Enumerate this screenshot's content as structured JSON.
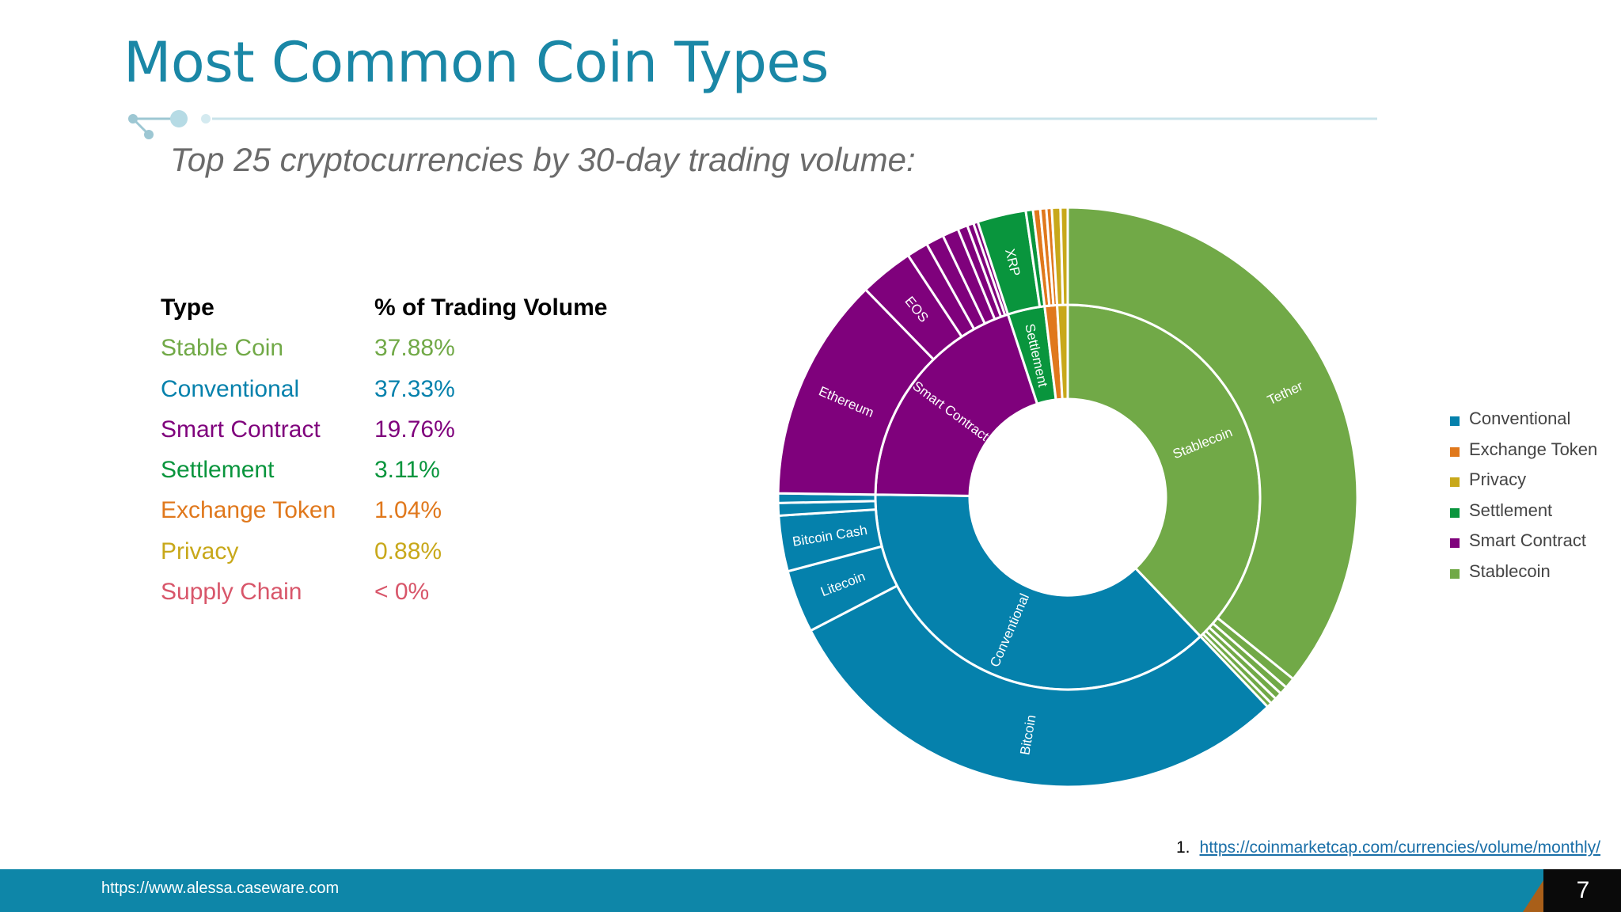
{
  "title": "Most Common Coin Types",
  "subtitle": "Top 25 cryptocurrencies by 30-day trading volume:",
  "table": {
    "header": {
      "type": "Type",
      "pct": "% of Trading Volume"
    },
    "rows": [
      {
        "type": "Stable Coin",
        "pct": "37.88%",
        "color": "#71a947"
      },
      {
        "type": "Conventional",
        "pct": "37.33%",
        "color": "#0581ac"
      },
      {
        "type": "Smart Contract",
        "pct": "19.76%",
        "color": "#7f017c"
      },
      {
        "type": "Settlement",
        "pct": "3.11%",
        "color": "#09953d"
      },
      {
        "type": "Exchange Token",
        "pct": "1.04%",
        "color": "#e0781c"
      },
      {
        "type": "Privacy",
        "pct": "0.88%",
        "color": "#c8a81a"
      },
      {
        "type": "Supply Chain",
        "pct": "< 0%",
        "color": "#d8566a"
      }
    ]
  },
  "legend": {
    "items": [
      {
        "label": "Conventional",
        "color": "#0581ac"
      },
      {
        "label": "Exchange Token",
        "color": "#e0781c"
      },
      {
        "label": "Privacy",
        "color": "#c8a81a"
      },
      {
        "label": "Settlement",
        "color": "#09953d"
      },
      {
        "label": "Smart Contract",
        "color": "#7f017c"
      },
      {
        "label": "Stablecoin",
        "color": "#71a947"
      }
    ]
  },
  "chart_data": {
    "type": "sunburst",
    "title": "",
    "inner_ring": [
      {
        "name": "Stablecoin",
        "value": 37.88,
        "color": "#71a947"
      },
      {
        "name": "Conventional",
        "value": 37.33,
        "color": "#0581ac"
      },
      {
        "name": "Smart Contract",
        "value": 19.76,
        "color": "#7f017c"
      },
      {
        "name": "Settlement",
        "value": 3.11,
        "color": "#09953d"
      },
      {
        "name": "",
        "value": 1.04,
        "color": "#e0781c"
      },
      {
        "name": "",
        "value": 0.88,
        "color": "#c8a81a"
      }
    ],
    "outer_ring": [
      {
        "name": "Tether",
        "value": 35.8,
        "color": "#71a947"
      },
      {
        "name": "",
        "value": 0.6,
        "color": "#71a947"
      },
      {
        "name": "",
        "value": 0.45,
        "color": "#71a947"
      },
      {
        "name": "",
        "value": 0.4,
        "color": "#71a947"
      },
      {
        "name": "",
        "value": 0.35,
        "color": "#71a947"
      },
      {
        "name": "",
        "value": 0.28,
        "color": "#71a947"
      },
      {
        "name": "Bitcoin",
        "value": 29.5,
        "color": "#0581ac"
      },
      {
        "name": "Litecoin",
        "value": 3.5,
        "color": "#0581ac"
      },
      {
        "name": "Bitcoin Cash",
        "value": 3.1,
        "color": "#0581ac"
      },
      {
        "name": "",
        "value": 0.7,
        "color": "#0581ac"
      },
      {
        "name": "",
        "value": 0.53,
        "color": "#0581ac"
      },
      {
        "name": "Ethereum",
        "value": 12.5,
        "color": "#7f017c"
      },
      {
        "name": "EOS",
        "value": 3.0,
        "color": "#7f017c"
      },
      {
        "name": "",
        "value": 1.2,
        "color": "#7f017c"
      },
      {
        "name": "",
        "value": 1.0,
        "color": "#7f017c"
      },
      {
        "name": "",
        "value": 0.9,
        "color": "#7f017c"
      },
      {
        "name": "",
        "value": 0.55,
        "color": "#7f017c"
      },
      {
        "name": "",
        "value": 0.36,
        "color": "#7f017c"
      },
      {
        "name": "",
        "value": 0.25,
        "color": "#7f017c"
      },
      {
        "name": "XRP",
        "value": 2.71,
        "color": "#09953d"
      },
      {
        "name": "",
        "value": 0.4,
        "color": "#09953d"
      },
      {
        "name": "",
        "value": 0.4,
        "color": "#e0781c"
      },
      {
        "name": "",
        "value": 0.34,
        "color": "#e0781c"
      },
      {
        "name": "",
        "value": 0.3,
        "color": "#e0781c"
      },
      {
        "name": "",
        "value": 0.48,
        "color": "#c8a81a"
      },
      {
        "name": "",
        "value": 0.4,
        "color": "#c8a81a"
      }
    ]
  },
  "source": {
    "number": "1.",
    "url": "https://coinmarketcap.com/currencies/volume/monthly/"
  },
  "footer": {
    "url": "https://www.alessa.caseware.com",
    "page": "7"
  }
}
